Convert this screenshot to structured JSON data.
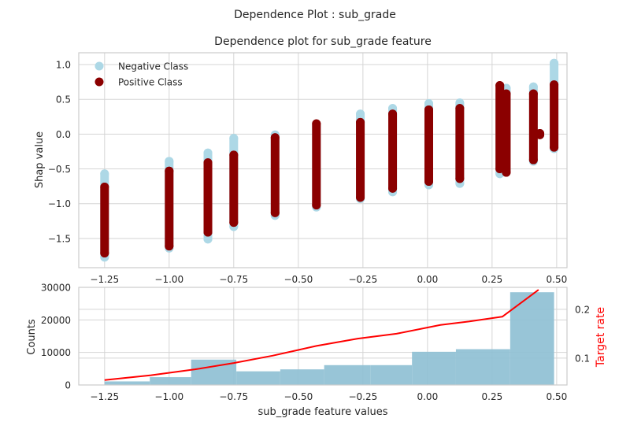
{
  "suptitle": "Dependence Plot : sub_grade",
  "chart_data": [
    {
      "type": "scatter",
      "title": "Dependence plot for sub_grade feature",
      "xlabel": "",
      "ylabel": "Shap value",
      "xlim": [
        -1.35,
        0.54
      ],
      "ylim": [
        -1.92,
        1.17
      ],
      "grid": true,
      "legend": "top-left",
      "xticks": [
        -1.25,
        -1.0,
        -0.75,
        -0.5,
        -0.25,
        0.0,
        0.25,
        0.5
      ],
      "xtick_labels": [
        "−1.25",
        "−1.00",
        "−0.75",
        "−0.50",
        "−0.25",
        "0.00",
        "0.25",
        "0.50"
      ],
      "yticks": [
        1.0,
        0.5,
        0.0,
        -0.5,
        -1.0,
        -1.5
      ],
      "ytick_labels": [
        "1.0",
        "0.5",
        "0.0",
        "−0.5",
        "−1.0",
        "−1.5"
      ],
      "series": [
        {
          "name": "Negative Class",
          "color": "#add8e6",
          "points": [
            {
              "x": -1.25,
              "ymin": -1.77,
              "ymax": -0.57
            },
            {
              "x": -1.0,
              "ymin": -1.64,
              "ymax": -0.39
            },
            {
              "x": -0.85,
              "ymin": -1.51,
              "ymax": -0.27
            },
            {
              "x": -0.75,
              "ymin": -1.33,
              "ymax": -0.06
            },
            {
              "x": -0.59,
              "ymin": -1.17,
              "ymax": -0.01
            },
            {
              "x": -0.43,
              "ymin": -1.05,
              "ymax": 0.12
            },
            {
              "x": -0.26,
              "ymin": -0.93,
              "ymax": 0.29
            },
            {
              "x": -0.135,
              "ymin": -0.83,
              "ymax": 0.37
            },
            {
              "x": 0.005,
              "ymin": -0.73,
              "ymax": 0.44
            },
            {
              "x": 0.125,
              "ymin": -0.71,
              "ymax": 0.45
            },
            {
              "x": 0.28,
              "ymin": -0.57,
              "ymax": 0.58
            },
            {
              "x": 0.305,
              "ymin": -0.53,
              "ymax": 0.66
            },
            {
              "x": 0.41,
              "ymin": -0.39,
              "ymax": 0.68
            },
            {
              "x": 0.435,
              "ymin": -0.01,
              "ymax": 0.01
            },
            {
              "x": 0.49,
              "ymin": -0.21,
              "ymax": 1.02
            }
          ]
        },
        {
          "name": "Positive Class",
          "color": "#8b0000",
          "points": [
            {
              "x": -1.25,
              "ymin": -1.71,
              "ymax": -0.76
            },
            {
              "x": -1.0,
              "ymin": -1.61,
              "ymax": -0.53
            },
            {
              "x": -0.85,
              "ymin": -1.41,
              "ymax": -0.41
            },
            {
              "x": -0.75,
              "ymin": -1.27,
              "ymax": -0.3
            },
            {
              "x": -0.59,
              "ymin": -1.13,
              "ymax": -0.05
            },
            {
              "x": -0.43,
              "ymin": -1.02,
              "ymax": 0.15
            },
            {
              "x": -0.26,
              "ymin": -0.91,
              "ymax": 0.17
            },
            {
              "x": -0.135,
              "ymin": -0.78,
              "ymax": 0.29
            },
            {
              "x": 0.005,
              "ymin": -0.68,
              "ymax": 0.35
            },
            {
              "x": 0.125,
              "ymin": -0.64,
              "ymax": 0.37
            },
            {
              "x": 0.28,
              "ymin": -0.5,
              "ymax": 0.7
            },
            {
              "x": 0.305,
              "ymin": -0.55,
              "ymax": 0.58
            },
            {
              "x": 0.41,
              "ymin": -0.37,
              "ymax": 0.58
            },
            {
              "x": 0.435,
              "ymin": -0.01,
              "ymax": 0.01
            },
            {
              "x": 0.49,
              "ymin": -0.19,
              "ymax": 0.71
            }
          ]
        }
      ]
    },
    {
      "type": "bar",
      "title": "",
      "xlabel": "sub_grade feature values",
      "ylabel": "Counts",
      "y2label": "Target rate",
      "xlim": [
        -1.35,
        0.54
      ],
      "ylim": [
        0,
        30000
      ],
      "y2lim": [
        0.045,
        0.245
      ],
      "grid": true,
      "xticks": [
        -1.25,
        -1.0,
        -0.75,
        -0.5,
        -0.25,
        0.0,
        0.25,
        0.5
      ],
      "xtick_labels": [
        "−1.25",
        "−1.00",
        "−0.75",
        "−0.50",
        "−0.25",
        "0.00",
        "0.25",
        "0.50"
      ],
      "yticks": [
        0,
        10000,
        20000,
        30000
      ],
      "ytick_labels": [
        "0",
        "10000",
        "20000",
        "30000"
      ],
      "y2ticks": [
        0.1,
        0.2
      ],
      "y2tick_labels": [
        "0.1",
        "0.2"
      ],
      "bar_color": "#8fc0d4",
      "line_color": "#ff0000",
      "y2label_color": "#ff0000",
      "bars": [
        {
          "x0": -1.25,
          "x1": -1.075,
          "value": 1100
        },
        {
          "x0": -1.075,
          "x1": -0.915,
          "value": 2400
        },
        {
          "x0": -0.915,
          "x1": -0.74,
          "value": 7800
        },
        {
          "x0": -0.74,
          "x1": -0.57,
          "value": 4200
        },
        {
          "x0": -0.57,
          "x1": -0.4,
          "value": 4800
        },
        {
          "x0": -0.4,
          "x1": -0.22,
          "value": 6100
        },
        {
          "x0": -0.22,
          "x1": -0.06,
          "value": 6100
        },
        {
          "x0": -0.06,
          "x1": 0.11,
          "value": 10200
        },
        {
          "x0": 0.11,
          "x1": 0.32,
          "value": 11000
        },
        {
          "x0": 0.32,
          "x1": 0.49,
          "value": 28500
        }
      ],
      "target_rate": {
        "x": [
          -1.25,
          -1.07,
          -0.9,
          -0.75,
          -0.6,
          -0.43,
          -0.27,
          -0.12,
          0.05,
          0.16,
          0.29,
          0.43
        ],
        "y": [
          0.055,
          0.065,
          0.077,
          0.09,
          0.105,
          0.125,
          0.14,
          0.15,
          0.168,
          0.175,
          0.185,
          0.24
        ]
      }
    }
  ]
}
